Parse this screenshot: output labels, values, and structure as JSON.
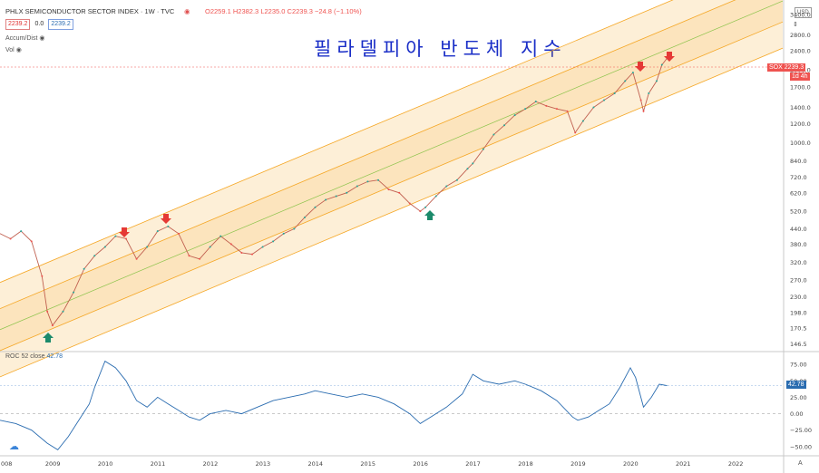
{
  "title": "PHLX SEMICONDUCTOR SECTOR INDEX · 1W · TVC",
  "ohlc": {
    "o": "O2259.1",
    "h": "H2382.3",
    "l": "L2235.0",
    "c": "C2239.3",
    "chg": "−24.8 (−1.10%)"
  },
  "bidask": {
    "bid": "2239.2",
    "spread": "0.0",
    "ask": "2239.2"
  },
  "indicators": [
    "Accum/Dist",
    "Vol"
  ],
  "annotation": "필라델피아 반도체 지수",
  "currency": "USD",
  "price_axis": [
    "3400.0",
    "2800.0",
    "2400.0",
    "2000.0",
    "1700.0",
    "1400.0",
    "1200.0",
    "1000.0",
    "840.0",
    "720.0",
    "620.0",
    "520.0",
    "440.0",
    "380.0",
    "320.0",
    "270.0",
    "230.0",
    "198.0",
    "170.5",
    "146.5"
  ],
  "last_price": {
    "symbol": "SOX",
    "value": "2239.3",
    "countdown": "1d 4h"
  },
  "roc": {
    "label": "ROC 52 close",
    "value": "42.78",
    "axis": [
      "75.00",
      "50.00",
      "25.00",
      "0.00",
      "−25.00",
      "−50.00"
    ]
  },
  "time_axis": [
    "008",
    "2009",
    "2010",
    "2011",
    "2012",
    "2013",
    "2014",
    "2015",
    "2016",
    "2017",
    "2018",
    "2019",
    "2020",
    "2021",
    "2022"
  ],
  "corner": "A",
  "colors": {
    "up": "#26a69a",
    "down": "#ef5350",
    "channel": "#f5a623",
    "roc": "#2a6cb0",
    "title_kr": "#1a2ec7"
  },
  "chart_data": [
    {
      "type": "line",
      "title": "PHLX SEMICONDUCTOR SECTOR INDEX",
      "scale": "log",
      "x": [
        2008.0,
        2008.2,
        2008.4,
        2008.6,
        2008.8,
        2008.9,
        2009.0,
        2009.2,
        2009.4,
        2009.6,
        2009.8,
        2010.0,
        2010.2,
        2010.4,
        2010.6,
        2010.8,
        2011.0,
        2011.2,
        2011.4,
        2011.6,
        2011.8,
        2012.0,
        2012.2,
        2012.4,
        2012.6,
        2012.8,
        2013.0,
        2013.2,
        2013.4,
        2013.6,
        2013.8,
        2014.0,
        2014.2,
        2014.4,
        2014.6,
        2014.8,
        2015.0,
        2015.2,
        2015.4,
        2015.6,
        2015.8,
        2016.0,
        2016.1,
        2016.3,
        2016.5,
        2016.7,
        2016.9,
        2017.0,
        2017.2,
        2017.4,
        2017.6,
        2017.8,
        2018.0,
        2018.2,
        2018.4,
        2018.6,
        2018.8,
        2018.95,
        2019.1,
        2019.3,
        2019.5,
        2019.7,
        2019.9,
        2020.05,
        2020.2,
        2020.25,
        2020.35,
        2020.5,
        2020.6,
        2020.7
      ],
      "y": [
        420,
        400,
        430,
        390,
        280,
        200,
        175,
        200,
        240,
        300,
        340,
        370,
        410,
        400,
        330,
        370,
        430,
        450,
        420,
        340,
        330,
        370,
        410,
        380,
        350,
        345,
        370,
        390,
        420,
        440,
        490,
        540,
        580,
        600,
        620,
        660,
        690,
        700,
        640,
        620,
        560,
        520,
        540,
        600,
        660,
        700,
        780,
        820,
        940,
        1080,
        1180,
        1300,
        1380,
        1480,
        1420,
        1380,
        1350,
        1100,
        1230,
        1400,
        1500,
        1600,
        1800,
        1950,
        1500,
        1350,
        1600,
        1800,
        2100,
        2239
      ],
      "ylabel": "",
      "xlabel": ""
    },
    {
      "type": "line",
      "title": "ROC 52 close",
      "x": [
        2008.0,
        2008.3,
        2008.6,
        2008.9,
        2009.1,
        2009.3,
        2009.5,
        2009.7,
        2009.8,
        2010.0,
        2010.2,
        2010.4,
        2010.6,
        2010.8,
        2011.0,
        2011.2,
        2011.4,
        2011.6,
        2011.8,
        2012.0,
        2012.3,
        2012.6,
        2012.9,
        2013.2,
        2013.5,
        2013.8,
        2014.0,
        2014.3,
        2014.6,
        2014.9,
        2015.2,
        2015.5,
        2015.8,
        2016.0,
        2016.2,
        2016.5,
        2016.8,
        2017.0,
        2017.2,
        2017.5,
        2017.8,
        2018.0,
        2018.3,
        2018.6,
        2018.9,
        2019.0,
        2019.2,
        2019.4,
        2019.6,
        2019.8,
        2020.0,
        2020.1,
        2020.25,
        2020.4,
        2020.55,
        2020.7
      ],
      "y": [
        -10,
        -15,
        -25,
        -45,
        -55,
        -35,
        -10,
        15,
        40,
        80,
        70,
        50,
        20,
        10,
        25,
        15,
        5,
        -5,
        -10,
        0,
        5,
        0,
        10,
        20,
        25,
        30,
        35,
        30,
        25,
        30,
        25,
        15,
        0,
        -15,
        -5,
        10,
        30,
        60,
        50,
        45,
        50,
        45,
        35,
        20,
        -5,
        -10,
        -5,
        5,
        15,
        40,
        70,
        55,
        10,
        25,
        45,
        42.78
      ],
      "ylim": [
        -60,
        85
      ],
      "xlabel": "",
      "ylabel": ""
    }
  ]
}
